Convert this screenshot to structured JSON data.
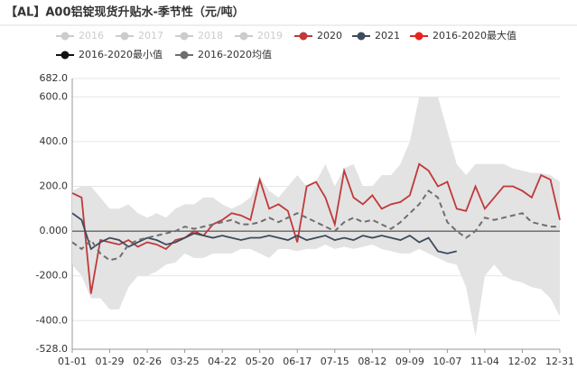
{
  "chart_data": {
    "type": "line",
    "title": "【AL】A00铝锭现货升贴水-季节性（元/吨）",
    "categories": [
      "01-01",
      null,
      null,
      null,
      "01-29",
      null,
      null,
      null,
      "02-26",
      null,
      null,
      null,
      "03-25",
      null,
      null,
      null,
      "04-22",
      null,
      null,
      null,
      "05-20",
      null,
      null,
      null,
      "06-17",
      null,
      null,
      null,
      "07-15",
      null,
      null,
      null,
      "08-12",
      null,
      null,
      null,
      "09-09",
      null,
      null,
      null,
      "10-07",
      null,
      null,
      null,
      "11-04",
      null,
      null,
      null,
      "12-02",
      null,
      null,
      null,
      "12-31"
    ],
    "ylim": [
      -528,
      682
    ],
    "yticks": [
      {
        "value": -528,
        "label": "-528.0"
      },
      {
        "value": -400,
        "label": "-400.0"
      },
      {
        "value": -200,
        "label": "-200.0"
      },
      {
        "value": 0,
        "label": "0.000"
      },
      {
        "value": 200,
        "label": "200.0"
      },
      {
        "value": 400,
        "label": "400.0"
      },
      {
        "value": 600,
        "label": "600.0"
      },
      {
        "value": 682,
        "label": "682.0"
      }
    ],
    "grid": true,
    "band_color": "#e3e3e3",
    "series": [
      {
        "name": "2016",
        "color": "#cccccc",
        "visible": false
      },
      {
        "name": "2017",
        "color": "#cccccc",
        "visible": false
      },
      {
        "name": "2018",
        "color": "#cccccc",
        "visible": false
      },
      {
        "name": "2019",
        "color": "#cccccc",
        "visible": false
      },
      {
        "name": "2020",
        "color": "#c0393b",
        "values": [
          170,
          150,
          -280,
          -40,
          -50,
          -60,
          -40,
          -70,
          -50,
          -60,
          -80,
          -40,
          -30,
          0,
          -20,
          30,
          50,
          80,
          70,
          50,
          230,
          100,
          120,
          90,
          -50,
          200,
          220,
          150,
          30,
          270,
          150,
          120,
          160,
          100,
          120,
          130,
          160,
          300,
          270,
          200,
          220,
          100,
          90,
          200,
          100,
          150,
          200,
          200,
          180,
          150,
          250,
          230,
          50
        ]
      },
      {
        "name": "2021",
        "color": "#3d4b5c",
        "values": [
          80,
          50,
          -80,
          -50,
          -30,
          -40,
          -70,
          -50,
          -30,
          -40,
          -60,
          -50,
          -30,
          -10,
          -20,
          -30,
          -20,
          -30,
          -40,
          -30,
          -30,
          -20,
          -30,
          -40,
          -20,
          -40,
          -30,
          -20,
          -40,
          -30,
          -40,
          -20,
          -30,
          -20,
          -30,
          -40,
          -20,
          -50,
          -30,
          -90,
          -100,
          -90,
          null,
          null,
          null,
          null,
          null,
          null,
          null,
          null,
          null,
          null,
          null
        ]
      },
      {
        "name": "2016-2020最大值",
        "color": "#e8221f",
        "role": "band-max",
        "values": [
          180,
          200,
          200,
          150,
          100,
          100,
          120,
          80,
          60,
          80,
          60,
          100,
          120,
          120,
          150,
          150,
          120,
          100,
          120,
          150,
          240,
          180,
          150,
          200,
          250,
          200,
          220,
          300,
          200,
          280,
          300,
          200,
          200,
          250,
          250,
          300,
          400,
          600,
          600,
          600,
          450,
          300,
          250,
          300,
          300,
          300,
          300,
          280,
          270,
          260,
          260,
          250,
          220
        ]
      },
      {
        "name": "2016-2020最小值",
        "color": "#111111",
        "role": "band-min",
        "values": [
          -150,
          -200,
          -300,
          -300,
          -350,
          -350,
          -250,
          -200,
          -200,
          -180,
          -150,
          -140,
          -100,
          -120,
          -120,
          -100,
          -100,
          -100,
          -80,
          -80,
          -100,
          -120,
          -80,
          -80,
          -90,
          -80,
          -80,
          -60,
          -80,
          -70,
          -80,
          -70,
          -60,
          -80,
          -90,
          -100,
          -100,
          -80,
          -100,
          -120,
          -140,
          -150,
          -250,
          -470,
          -200,
          -150,
          -200,
          -220,
          -230,
          -250,
          -260,
          -300,
          -380
        ]
      },
      {
        "name": "2016-2020均值",
        "color": "#6e6e6e",
        "dashed": true,
        "values": [
          -50,
          -80,
          -40,
          -100,
          -130,
          -120,
          -60,
          -40,
          -30,
          -20,
          -10,
          0,
          20,
          10,
          20,
          30,
          40,
          50,
          30,
          30,
          40,
          60,
          40,
          60,
          80,
          60,
          40,
          20,
          0,
          40,
          60,
          40,
          50,
          30,
          10,
          40,
          80,
          120,
          180,
          150,
          40,
          0,
          -30,
          0,
          60,
          50,
          60,
          70,
          80,
          40,
          30,
          20,
          20
        ]
      }
    ]
  }
}
